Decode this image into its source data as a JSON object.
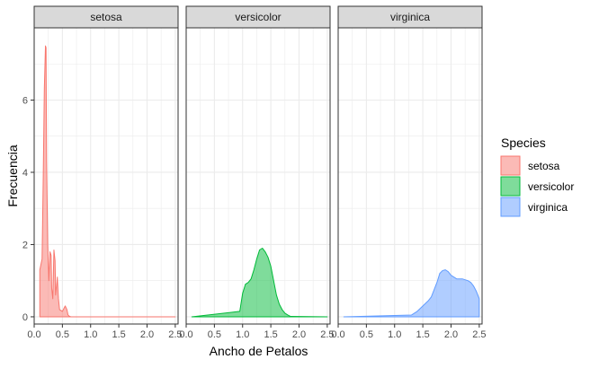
{
  "chart_data": {
    "type": "area",
    "subtype": "density",
    "xlabel": "Ancho de Petalos",
    "ylabel": "Frecuencia",
    "xlim": [
      0,
      2.55
    ],
    "ylim": [
      -0.2,
      8.0
    ],
    "x_ticks": [
      0.0,
      0.5,
      1.0,
      1.5,
      2.0,
      2.5
    ],
    "x_tick_labels": [
      "0.0",
      "0.5",
      "1.0",
      "1.5",
      "2.0",
      "2.5"
    ],
    "y_ticks": [
      0,
      2,
      4,
      6
    ],
    "y_tick_labels": [
      "0",
      "2",
      "4",
      "6"
    ],
    "grid": true,
    "facets": [
      "setosa",
      "versicolor",
      "virginica"
    ],
    "legend": {
      "title": "Species",
      "position": "right",
      "entries": [
        "setosa",
        "versicolor",
        "virginica"
      ]
    },
    "colors": {
      "setosa": "#F8766D",
      "versicolor": "#00BA38",
      "virginica": "#619CFF",
      "panel_grid": "#ebebeb",
      "strip_bg": "#d9d9d9",
      "frame": "#333333"
    },
    "series": [
      {
        "name": "setosa",
        "x": [
          0.1,
          0.1,
          0.12,
          0.14,
          0.16,
          0.18,
          0.2,
          0.21,
          0.22,
          0.24,
          0.26,
          0.28,
          0.3,
          0.31,
          0.33,
          0.35,
          0.37,
          0.38,
          0.4,
          0.41,
          0.43,
          0.45,
          0.5,
          0.55,
          0.58,
          0.6,
          0.62,
          0.65,
          2.5
        ],
        "y": [
          0,
          1.3,
          1.45,
          1.6,
          3.8,
          6.3,
          7.5,
          7.45,
          4.3,
          2.0,
          1.0,
          1.8,
          1.7,
          0.8,
          0.5,
          1.85,
          1.55,
          0.6,
          0.9,
          1.1,
          0.5,
          0.2,
          0.15,
          0.3,
          0.2,
          0.05,
          0.02,
          0,
          0
        ]
      },
      {
        "name": "versicolor",
        "x": [
          0.1,
          0.95,
          1.0,
          1.05,
          1.1,
          1.15,
          1.2,
          1.25,
          1.3,
          1.35,
          1.4,
          1.45,
          1.5,
          1.55,
          1.6,
          1.65,
          1.7,
          1.75,
          1.8,
          1.85,
          2.5
        ],
        "y": [
          0,
          0.15,
          0.65,
          0.9,
          0.95,
          1.05,
          1.3,
          1.6,
          1.85,
          1.9,
          1.8,
          1.65,
          1.4,
          1.0,
          0.6,
          0.35,
          0.2,
          0.1,
          0.05,
          0.01,
          0
        ]
      },
      {
        "name": "virginica",
        "x": [
          0.1,
          1.3,
          1.4,
          1.5,
          1.6,
          1.65,
          1.7,
          1.75,
          1.8,
          1.85,
          1.9,
          1.95,
          2.0,
          2.1,
          2.2,
          2.3,
          2.35,
          2.4,
          2.45,
          2.5
        ],
        "y": [
          0,
          0.05,
          0.15,
          0.3,
          0.45,
          0.55,
          0.75,
          0.95,
          1.2,
          1.28,
          1.3,
          1.25,
          1.15,
          1.05,
          1.05,
          1.0,
          0.95,
          0.85,
          0.7,
          0.5
        ]
      }
    ]
  }
}
